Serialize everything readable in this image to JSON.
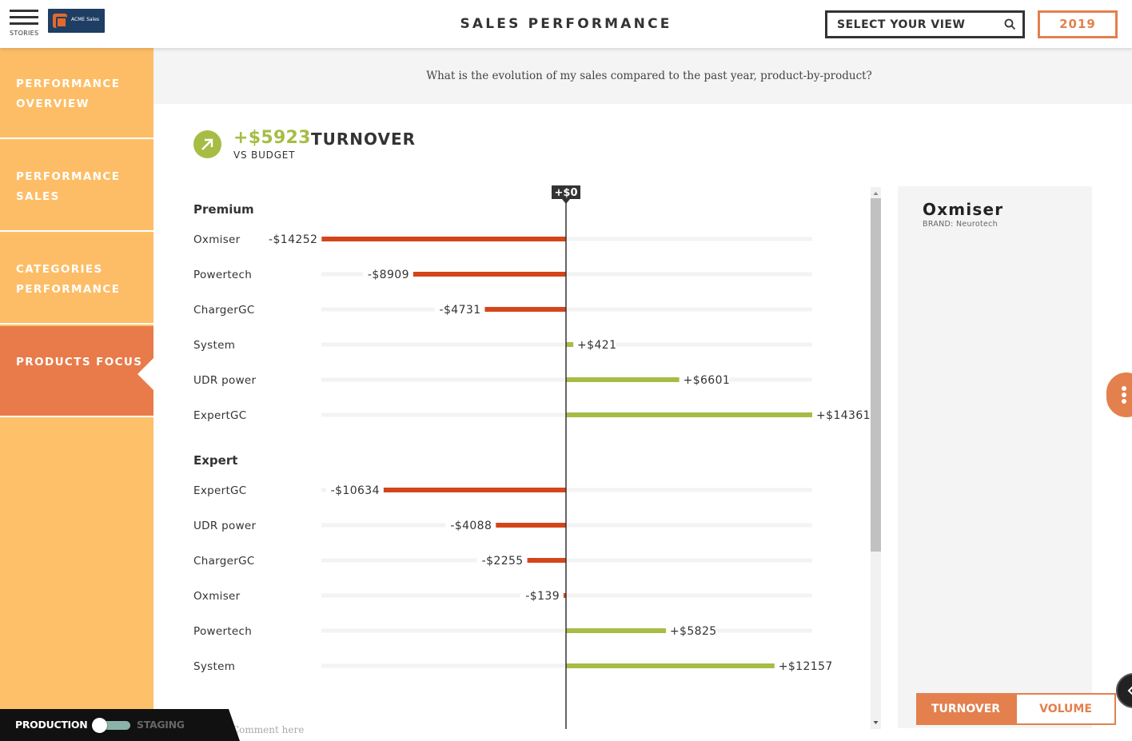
{
  "topbar": {
    "menu_label": "STORIES",
    "logo_text": "ACME Sales",
    "title": "SALES PERFORMANCE",
    "view_select": "SELECT YOUR VIEW",
    "year": "2019"
  },
  "sidebar": {
    "items": [
      {
        "label": "PERFORMANCE OVERVIEW",
        "active": false
      },
      {
        "label": "PERFORMANCE SALES",
        "active": false
      },
      {
        "label": "CATEGORIES PERFORMANCE",
        "active": false
      },
      {
        "label": "PRODUCTS FOCUS",
        "active": true
      }
    ]
  },
  "question": "What is the evolution of my sales compared to the past year, product-by-product?",
  "kpi": {
    "value": "+$5923",
    "label": "TURNOVER",
    "sub": "VS BUDGET"
  },
  "colors": {
    "negative": "#d4451a",
    "positive": "#a6bd45",
    "accent": "#e3804e",
    "sidebar": "#fdbd66"
  },
  "chart_data": {
    "type": "bar",
    "orientation": "horizontal-diverging",
    "zero_label": "+$0",
    "scale_max": 14361,
    "groups": [
      {
        "name": "Premium",
        "items": [
          {
            "label": "Oxmiser",
            "value": -14252,
            "display": "-$14252"
          },
          {
            "label": "Powertech",
            "value": -8909,
            "display": "-$8909"
          },
          {
            "label": "ChargerGC",
            "value": -4731,
            "display": "-$4731"
          },
          {
            "label": "System",
            "value": 421,
            "display": "+$421"
          },
          {
            "label": "UDR power",
            "value": 6601,
            "display": "+$6601"
          },
          {
            "label": "ExpertGC",
            "value": 14361,
            "display": "+$14361"
          }
        ]
      },
      {
        "name": "Expert",
        "items": [
          {
            "label": "ExpertGC",
            "value": -10634,
            "display": "-$10634"
          },
          {
            "label": "UDR power",
            "value": -4088,
            "display": "-$4088"
          },
          {
            "label": "ChargerGC",
            "value": -2255,
            "display": "-$2255"
          },
          {
            "label": "Oxmiser",
            "value": -139,
            "display": "-$139"
          },
          {
            "label": "Powertech",
            "value": 5825,
            "display": "+$5825"
          },
          {
            "label": "System",
            "value": 12157,
            "display": "+$12157"
          }
        ]
      }
    ]
  },
  "detail": {
    "name": "Oxmiser",
    "brand": "BRAND: Neurotech"
  },
  "toggle": {
    "turnover": "TURNOVER",
    "volume": "VOLUME"
  },
  "comment_placeholder": "Comment here",
  "env": {
    "production": "PRODUCTION",
    "staging": "STAGING"
  }
}
